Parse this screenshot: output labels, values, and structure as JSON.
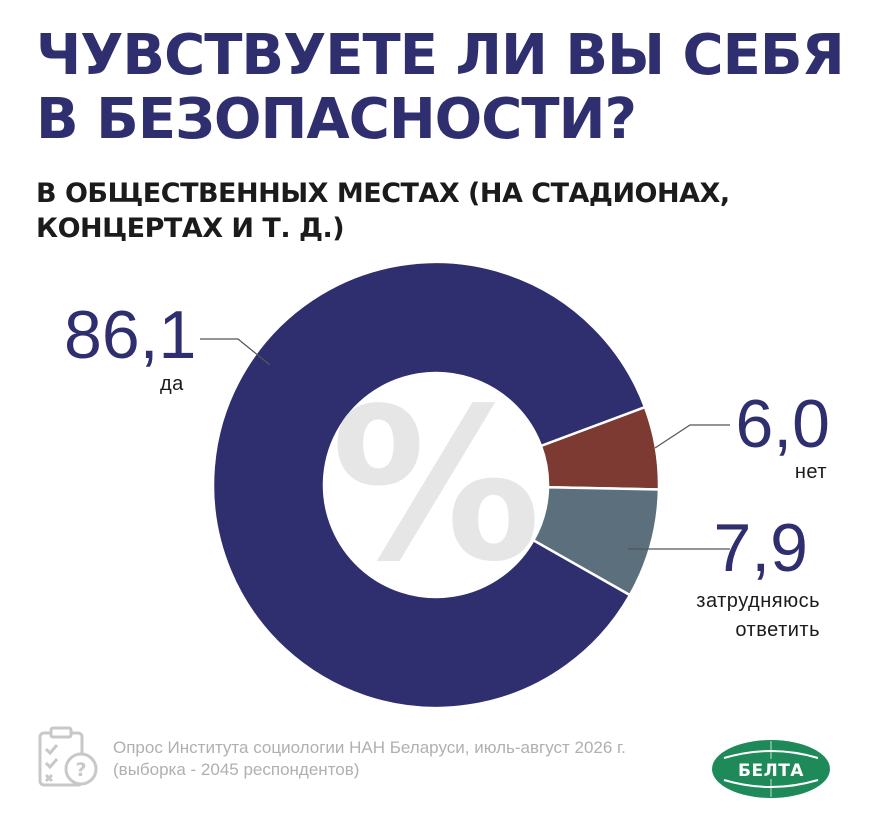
{
  "title": {
    "line1": "ЧУВСТВУЕТЕ ЛИ ВЫ СЕБЯ",
    "line2": "В БЕЗОПАСНОСТИ?"
  },
  "subtitle": {
    "line1": "В ОБЩЕСТВЕННЫХ МЕСТАХ (НА СТАДИОНАХ,",
    "line2": "КОНЦЕРТАХ И Т. Д.)"
  },
  "chart_data": {
    "type": "pie",
    "donut": true,
    "center_symbol": "%",
    "slices": [
      {
        "name": "да",
        "value": 86.1,
        "display": "86,1",
        "color": "#2f2f70"
      },
      {
        "name": "нет",
        "value": 6.0,
        "display": "6,0",
        "color": "#7d3a33"
      },
      {
        "name": "затрудняюсь ответить",
        "value": 7.9,
        "display": "7,9",
        "label_lines": [
          "затрудняюсь",
          "ответить"
        ],
        "color": "#5c6f7d"
      }
    ]
  },
  "footer": {
    "line1": "Опрос Института социологии НАН Беларуси, июль-август 2026 г.",
    "line2": "(выборка - 2045 респондентов)",
    "icon": "clipboard-question-icon"
  },
  "logo": {
    "text": "БЕЛТА",
    "color": "#1e8a5a"
  }
}
